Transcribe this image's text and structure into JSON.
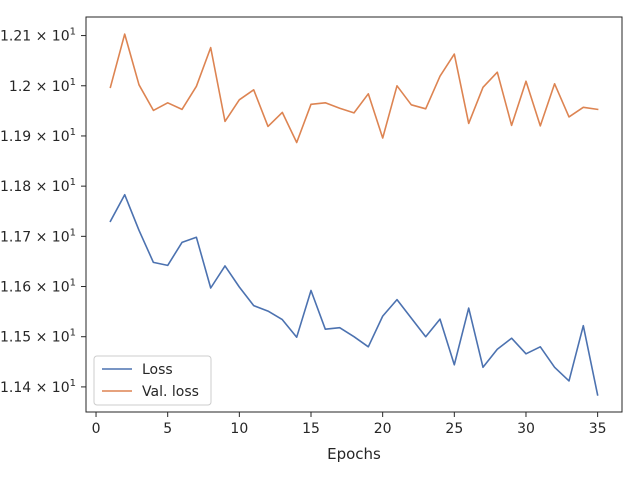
{
  "chart_data": {
    "type": "line",
    "title": "",
    "xlabel": "Epochs",
    "ylabel": "",
    "xlim": [
      -0.7,
      36.7
    ],
    "ylim": [
      11.35,
      12.137
    ],
    "xticks": [
      0,
      5,
      10,
      15,
      20,
      25,
      30,
      35
    ],
    "yticks": [
      {
        "value": 11.4,
        "mantissa": "1.14",
        "exponent": "1"
      },
      {
        "value": 11.5,
        "mantissa": "1.15",
        "exponent": "1"
      },
      {
        "value": 11.6,
        "mantissa": "1.16",
        "exponent": "1"
      },
      {
        "value": 11.7,
        "mantissa": "1.17",
        "exponent": "1"
      },
      {
        "value": 11.8,
        "mantissa": "1.18",
        "exponent": "1"
      },
      {
        "value": 11.9,
        "mantissa": "1.19",
        "exponent": "1"
      },
      {
        "value": 12.0,
        "mantissa": "1.2",
        "exponent": "1"
      },
      {
        "value": 12.1,
        "mantissa": "1.21",
        "exponent": "1"
      }
    ],
    "ytick_times": "×",
    "ytick_base": "10",
    "grid": false,
    "legend_position": "lower-left",
    "x": [
      1,
      2,
      3,
      4,
      5,
      6,
      7,
      8,
      9,
      10,
      11,
      12,
      13,
      14,
      15,
      16,
      17,
      18,
      19,
      20,
      21,
      22,
      23,
      24,
      25,
      26,
      27,
      28,
      29,
      30,
      31,
      32,
      33,
      34,
      35
    ],
    "series": [
      {
        "name": "Loss",
        "color": "#4c72b0",
        "values": [
          11.73,
          11.783,
          11.712,
          11.648,
          11.642,
          11.688,
          11.698,
          11.597,
          11.641,
          11.599,
          11.562,
          11.551,
          11.534,
          11.499,
          11.592,
          11.515,
          11.518,
          11.5,
          11.48,
          11.541,
          11.574,
          11.537,
          11.5,
          11.535,
          11.444,
          11.557,
          11.439,
          11.475,
          11.497,
          11.466,
          11.48,
          11.439,
          11.412,
          11.522,
          11.384
        ]
      },
      {
        "name": "Val. loss",
        "color": "#dd8452",
        "values": [
          11.997,
          12.103,
          12.002,
          11.951,
          11.966,
          11.953,
          11.999,
          12.076,
          11.929,
          11.972,
          11.992,
          11.919,
          11.947,
          11.887,
          11.963,
          11.966,
          11.955,
          11.946,
          11.984,
          11.896,
          12.0,
          11.962,
          11.954,
          12.019,
          12.063,
          11.925,
          11.997,
          12.027,
          11.921,
          12.009,
          11.92,
          12.004,
          11.938,
          11.957,
          11.953
        ]
      }
    ]
  }
}
